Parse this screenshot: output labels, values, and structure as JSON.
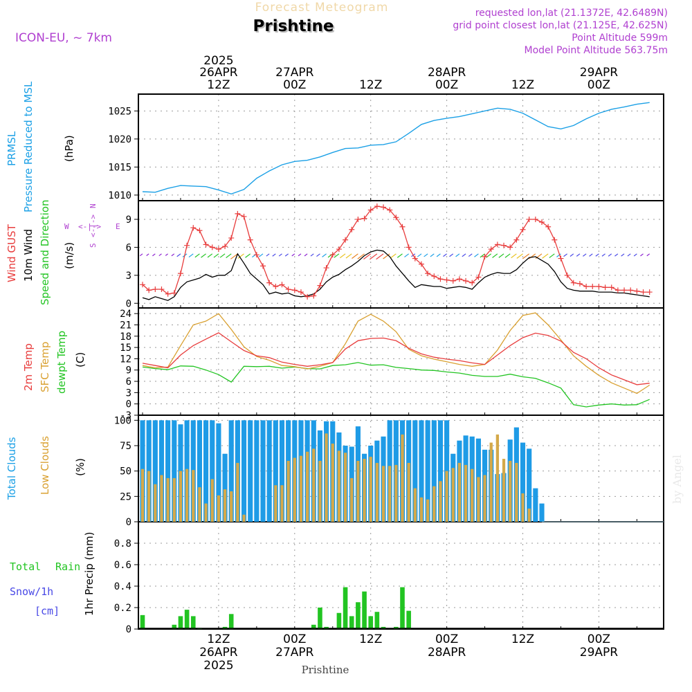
{
  "header": {
    "title_faded": "Forecast Meteogram",
    "location": "Prishtine",
    "model": "ICON-EU, ~ 7km",
    "requested": "requested lon,lat (21.1372E, 42.6489N)",
    "grid_point": "grid point closest lon,lat (21.125E, 42.625N)",
    "point_altitude": "Point Altitude 599m",
    "model_altitude": "Model Point Altitude 563.75m"
  },
  "top_axis": {
    "year": "2025",
    "labels": [
      {
        "l1": "26APR",
        "l2": "12Z"
      },
      {
        "l1": "27APR",
        "l2": "00Z"
      },
      {
        "l1": "",
        "l2": "12Z"
      },
      {
        "l1": "28APR",
        "l2": "00Z"
      },
      {
        "l1": "",
        "l2": "12Z"
      },
      {
        "l1": "29APR",
        "l2": "00Z"
      }
    ]
  },
  "bottom_axis": {
    "year": "2025",
    "labels": [
      {
        "l1": "12Z",
        "l2": "26APR"
      },
      {
        "l1": "00Z",
        "l2": "27APR"
      },
      {
        "l1": "12Z",
        "l2": ""
      },
      {
        "l1": "00Z",
        "l2": "28APR"
      },
      {
        "l1": "12Z",
        "l2": ""
      },
      {
        "l1": "00Z",
        "l2": "29APR"
      }
    ],
    "footer": "Prishtine"
  },
  "watermark": "by Angel",
  "colors": {
    "pressure": "#1ba0e6",
    "gust": "#e83c3c",
    "wind": "#000000",
    "temp": "#e83c3c",
    "sfc": "#d9a030",
    "dewpt": "#22c422",
    "total_cloud": "#1e9be6",
    "low_cloud": "#d4a94a",
    "rain": "#22c422",
    "snow": "#4848e6",
    "label_purple": "#b040d0"
  },
  "chart_data": [
    {
      "type": "line",
      "panel": "pressure",
      "labels": [
        "PRMSL",
        "Pressure Reduced to MSL"
      ],
      "ylabel": "(hPa)",
      "ylim": [
        1009,
        1028
      ],
      "yticks": [
        1010,
        1015,
        1020,
        1025
      ],
      "x_hours_from": "2025-04-26 00Z",
      "x": [
        0,
        2,
        4,
        6,
        8,
        10,
        12,
        14,
        16,
        18,
        20,
        22,
        24,
        26,
        28,
        30,
        32,
        34,
        36,
        38,
        40,
        42,
        44,
        46,
        48,
        50,
        52,
        54,
        56,
        58,
        60,
        62,
        64,
        66,
        68,
        70,
        72,
        74,
        76,
        78,
        80
      ],
      "series": [
        {
          "name": "PRMSL",
          "values": [
            1010.6,
            1010.5,
            1011.2,
            1011.7,
            1011.6,
            1011.5,
            1010.9,
            1010.2,
            1011.0,
            1013.0,
            1014.3,
            1015.4,
            1016.0,
            1016.2,
            1016.8,
            1017.6,
            1018.3,
            1018.4,
            1018.9,
            1019.0,
            1019.5,
            1021.0,
            1022.6,
            1023.3,
            1023.7,
            1024.0,
            1024.5,
            1025.0,
            1025.5,
            1025.3,
            1024.6,
            1023.4,
            1022.2,
            1021.8,
            1022.4,
            1023.6,
            1024.6,
            1025.3,
            1025.7,
            1026.2,
            1026.5
          ]
        }
      ]
    },
    {
      "type": "line",
      "panel": "wind",
      "labels": [
        "Wind GUST",
        "10m Wind",
        "Speed and Direction"
      ],
      "ylabel": "(m/s)",
      "ylim": [
        -0.5,
        11
      ],
      "yticks": [
        0,
        3,
        6,
        9
      ],
      "compass": {
        "w": "W",
        "e": "E",
        "n": "N",
        "s": "S"
      },
      "x": [
        0,
        1,
        2,
        3,
        4,
        5,
        6,
        7,
        8,
        9,
        10,
        11,
        12,
        13,
        14,
        15,
        16,
        17,
        18,
        19,
        20,
        21,
        22,
        23,
        24,
        25,
        26,
        27,
        28,
        29,
        30,
        31,
        32,
        33,
        34,
        35,
        36,
        37,
        38,
        39,
        40,
        41,
        42,
        43,
        44,
        45,
        46,
        47,
        48,
        49,
        50,
        51,
        52,
        53,
        54,
        55,
        56,
        57,
        58,
        59,
        60,
        61,
        62,
        63,
        64,
        65,
        66,
        67,
        68,
        69,
        70,
        71,
        72,
        73,
        74,
        75,
        76,
        77,
        78,
        79,
        80
      ],
      "series": [
        {
          "name": "Wind GUST",
          "values": [
            2.0,
            1.4,
            1.5,
            1.5,
            1.0,
            1.1,
            3.2,
            6.2,
            8.1,
            7.8,
            6.3,
            6.0,
            5.8,
            6.1,
            7.0,
            9.6,
            9.3,
            6.8,
            5.2,
            4.0,
            2.2,
            1.8,
            2.0,
            1.5,
            1.4,
            1.2,
            0.7,
            0.8,
            1.9,
            3.8,
            5.2,
            5.8,
            6.8,
            7.9,
            9.0,
            9.1,
            10.0,
            10.4,
            10.3,
            10.0,
            9.2,
            8.2,
            6.0,
            4.8,
            4.2,
            3.2,
            2.9,
            2.6,
            2.5,
            2.4,
            2.6,
            2.4,
            2.2,
            2.8,
            5.0,
            5.8,
            6.3,
            6.2,
            6.0,
            6.8,
            7.9,
            9.0,
            9.0,
            8.7,
            8.2,
            6.8,
            4.8,
            3.0,
            2.2,
            2.1,
            1.8,
            1.8,
            1.8,
            1.7,
            1.7,
            1.4,
            1.4,
            1.4,
            1.3,
            1.2,
            1.2
          ]
        },
        {
          "name": "10m Wind",
          "values": [
            0.6,
            0.4,
            0.7,
            0.5,
            0.3,
            0.7,
            1.7,
            2.3,
            2.5,
            2.7,
            3.1,
            2.8,
            3.0,
            3.0,
            3.5,
            5.3,
            4.3,
            3.2,
            2.6,
            2.0,
            1.0,
            1.2,
            1.0,
            1.1,
            0.8,
            0.7,
            0.8,
            1.0,
            1.5,
            2.3,
            2.8,
            3.1,
            3.6,
            4.0,
            4.5,
            5.1,
            5.5,
            5.7,
            5.6,
            5.0,
            4.0,
            3.2,
            2.4,
            1.7,
            2.0,
            1.9,
            1.8,
            1.8,
            1.6,
            1.7,
            1.8,
            1.7,
            1.5,
            2.2,
            2.8,
            3.1,
            3.3,
            3.2,
            3.2,
            3.6,
            4.3,
            4.9,
            5.0,
            4.6,
            4.2,
            3.4,
            2.3,
            1.6,
            1.4,
            1.3,
            1.3,
            1.3,
            1.2,
            1.2,
            1.2,
            1.1,
            1.1,
            1.0,
            0.9,
            0.8,
            0.7
          ]
        }
      ]
    },
    {
      "type": "line",
      "panel": "temperature",
      "labels": [
        "2m Temp",
        "SFC Temp",
        "dewpt Temp"
      ],
      "ylabel": "(C)",
      "ylim": [
        -3,
        25.5
      ],
      "yticks": [
        -3,
        0,
        3,
        6,
        9,
        12,
        15,
        18,
        21,
        24
      ],
      "x": [
        0,
        2,
        4,
        6,
        8,
        10,
        12,
        14,
        16,
        18,
        20,
        22,
        24,
        26,
        28,
        30,
        32,
        34,
        36,
        38,
        40,
        42,
        44,
        46,
        48,
        50,
        52,
        54,
        56,
        58,
        60,
        62,
        64,
        66,
        68,
        70,
        72,
        74,
        76,
        78,
        80
      ],
      "series": [
        {
          "name": "2m Temp",
          "values": [
            10.8,
            10.2,
            9.6,
            13.0,
            15.5,
            17.2,
            18.9,
            16.5,
            14.2,
            12.8,
            12.3,
            11.1,
            10.5,
            10.0,
            10.4,
            11.0,
            14.6,
            16.8,
            17.4,
            17.5,
            16.8,
            14.8,
            13.3,
            12.4,
            11.9,
            11.5,
            10.9,
            10.5,
            13.0,
            15.5,
            17.6,
            18.8,
            18.2,
            16.7,
            13.7,
            12.0,
            9.6,
            7.7,
            6.4,
            5.1,
            5.5
          ]
        },
        {
          "name": "SFC Temp",
          "values": [
            10.2,
            9.6,
            9.8,
            15.5,
            21.0,
            22.0,
            24.0,
            19.8,
            15.2,
            12.6,
            11.6,
            10.2,
            9.9,
            9.3,
            10.0,
            11.0,
            16.0,
            22.0,
            23.8,
            22.0,
            19.2,
            14.5,
            12.8,
            11.9,
            11.2,
            10.5,
            10.0,
            10.5,
            14.3,
            19.5,
            23.5,
            24.2,
            21.0,
            17.0,
            12.8,
            10.0,
            7.6,
            5.6,
            4.2,
            2.8,
            5.0
          ]
        },
        {
          "name": "dewpt Temp",
          "values": [
            9.8,
            9.4,
            9.1,
            10.1,
            10.0,
            9.0,
            7.8,
            5.8,
            10.0,
            9.9,
            10.0,
            9.5,
            9.8,
            9.4,
            9.3,
            10.2,
            10.4,
            11.0,
            10.3,
            10.4,
            9.7,
            9.4,
            9.0,
            8.9,
            8.5,
            8.2,
            7.6,
            7.3,
            7.3,
            7.9,
            7.2,
            6.8,
            5.6,
            4.2,
            -0.2,
            -0.8,
            -0.3,
            0.0,
            -0.3,
            -0.2,
            1.2
          ]
        }
      ]
    },
    {
      "type": "bar",
      "panel": "clouds",
      "labels": [
        "Total Clouds",
        "Low Clouds"
      ],
      "ylabel": "(%)",
      "ylim": [
        0,
        105
      ],
      "yticks": [
        0,
        25,
        50,
        75,
        100
      ],
      "x": [
        0,
        1,
        2,
        3,
        4,
        5,
        6,
        7,
        8,
        9,
        10,
        11,
        12,
        13,
        14,
        15,
        16,
        17,
        18,
        19,
        20,
        21,
        22,
        23,
        24,
        25,
        26,
        27,
        28,
        29,
        30,
        31,
        32,
        33,
        34,
        35,
        36,
        37,
        38,
        39,
        40,
        41,
        42,
        43,
        44,
        45,
        46,
        47,
        48,
        49,
        50,
        51,
        52,
        53,
        54,
        55,
        56,
        57,
        58,
        59,
        60,
        61,
        62,
        63,
        64,
        65,
        66,
        67,
        68,
        69,
        70,
        71,
        72,
        73,
        74,
        75,
        76,
        77,
        78,
        79,
        80
      ],
      "series": [
        {
          "name": "Total Clouds",
          "values": [
            100,
            100,
            100,
            100,
            100,
            100,
            96,
            100,
            100,
            100,
            100,
            100,
            97,
            67,
            100,
            100,
            100,
            100,
            100,
            100,
            100,
            100,
            100,
            100,
            100,
            100,
            100,
            100,
            90,
            99,
            99,
            88,
            75,
            74,
            94,
            67,
            75,
            80,
            84,
            100,
            100,
            100,
            100,
            100,
            100,
            100,
            100,
            100,
            100,
            67,
            80,
            85,
            84,
            82,
            71,
            71,
            47,
            48,
            81,
            93,
            78,
            72,
            33,
            18,
            0,
            0,
            0,
            0,
            0,
            0,
            0,
            0,
            0,
            0,
            0,
            0,
            0,
            0,
            0,
            0,
            0
          ]
        },
        {
          "name": "Low Clouds",
          "values": [
            52,
            50,
            37,
            46,
            43,
            43,
            50,
            52,
            51,
            34,
            18,
            42,
            26,
            32,
            30,
            58,
            7,
            0,
            0,
            0,
            0,
            36,
            36,
            60,
            63,
            65,
            69,
            72,
            60,
            87,
            77,
            70,
            68,
            43,
            60,
            62,
            64,
            58,
            55,
            55,
            56,
            86,
            58,
            33,
            24,
            22,
            35,
            40,
            50,
            53,
            58,
            56,
            52,
            44,
            46,
            78,
            86,
            62,
            60,
            58,
            28,
            13,
            0,
            0,
            0,
            0,
            0,
            0,
            0,
            0,
            0,
            0,
            0,
            0,
            0,
            0,
            0,
            0,
            0,
            0,
            0
          ]
        }
      ]
    },
    {
      "type": "bar",
      "panel": "precip",
      "labels": [
        "Total",
        "Rain",
        "Snow/1h",
        "[cm]"
      ],
      "ylabel": "1hr Precip (mm)",
      "ylim": [
        0,
        1.0
      ],
      "yticks": [
        0,
        0.2,
        0.4,
        0.6,
        0.8
      ],
      "x": [
        0,
        1,
        2,
        3,
        4,
        5,
        6,
        7,
        8,
        9,
        10,
        11,
        12,
        13,
        14,
        15,
        16,
        17,
        18,
        19,
        20,
        21,
        22,
        23,
        24,
        25,
        26,
        27,
        28,
        29,
        30,
        31,
        32,
        33,
        34,
        35,
        36,
        37,
        38,
        39,
        40,
        41,
        42,
        43,
        44,
        45,
        46,
        47,
        48,
        49,
        50,
        51,
        52,
        53,
        54,
        55,
        56,
        57,
        58,
        59,
        60,
        61,
        62,
        63,
        64,
        65,
        66,
        67,
        68,
        69,
        70,
        71,
        72,
        73,
        74,
        75,
        76,
        77,
        78,
        79,
        80
      ],
      "series": [
        {
          "name": "Rain",
          "values": [
            0.13,
            0,
            0,
            0,
            0,
            0.04,
            0.12,
            0.18,
            0.12,
            0.01,
            0,
            0,
            0,
            0.02,
            0.14,
            0,
            0,
            0,
            0,
            0,
            0,
            0,
            0,
            0,
            0,
            0,
            0,
            0.04,
            0.2,
            0.02,
            0,
            0.15,
            0.39,
            0.12,
            0.25,
            0.35,
            0.12,
            0.16,
            0.02,
            0,
            0.02,
            0.39,
            0.17,
            0,
            0,
            0,
            0,
            0,
            0,
            0,
            0,
            0,
            0,
            0,
            0,
            0,
            0,
            0,
            0,
            0,
            0,
            0,
            0,
            0,
            0,
            0,
            0,
            0,
            0,
            0,
            0,
            0,
            0,
            0,
            0,
            0,
            0,
            0,
            0,
            0,
            0
          ]
        }
      ]
    }
  ]
}
